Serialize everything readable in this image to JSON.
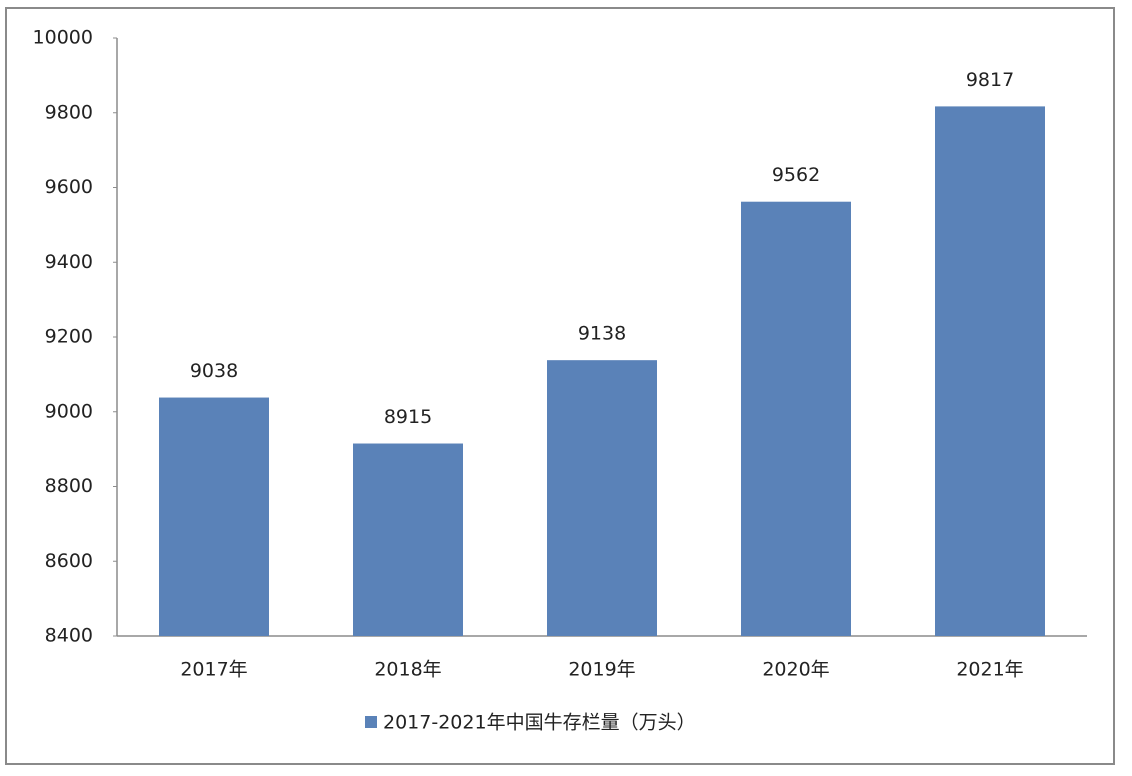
{
  "chart_data": {
    "type": "bar",
    "categories": [
      "2017年",
      "2018年",
      "2019年",
      "2020年",
      "2021年"
    ],
    "series": [
      {
        "name": "2017-2021年中国牛存栏量（万头）",
        "color": "#5a82b8",
        "values": [
          9038,
          8915,
          9138,
          9562,
          9817
        ]
      }
    ],
    "ylim": [
      8400,
      10000
    ],
    "yticks": [
      8400,
      8600,
      8800,
      9000,
      9200,
      9400,
      9600,
      9800,
      10000
    ],
    "grid": false,
    "legend": "bottom"
  }
}
